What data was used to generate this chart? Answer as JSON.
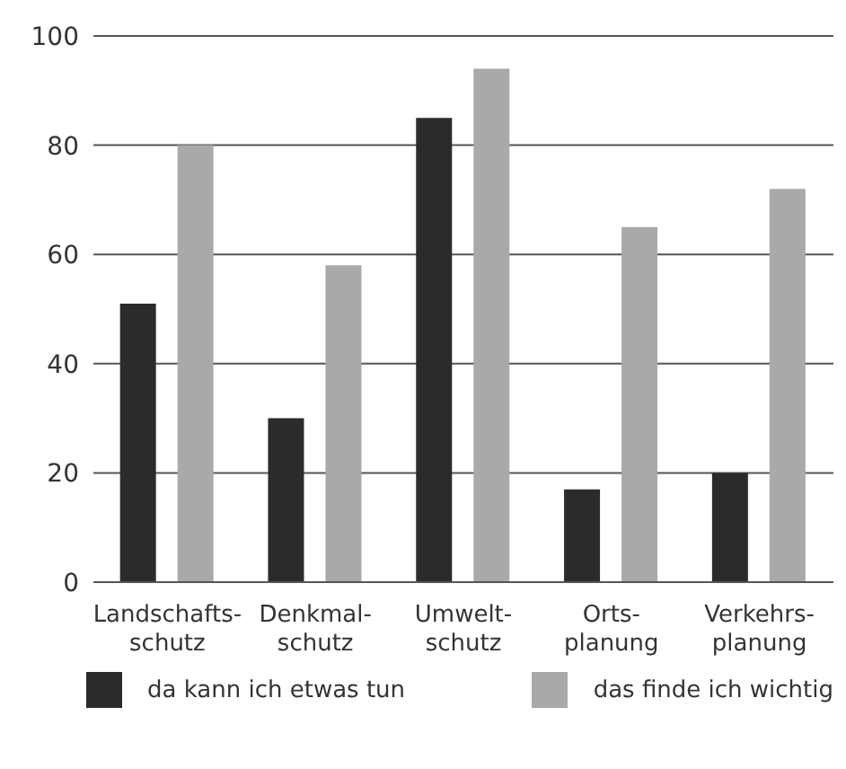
{
  "chart_data": {
    "type": "bar",
    "categories": [
      "Landschafts-\nschutz",
      "Denkmal-\nschutz",
      "Umwelt-\nschutz",
      "Orts-\nplanung",
      "Verkehrs-\nplanung"
    ],
    "series": [
      {
        "name": "da kann ich etwas tun",
        "color": "#2b2b2b",
        "values": [
          51,
          30,
          85,
          17,
          20
        ]
      },
      {
        "name": "das finde ich wichtig",
        "color": "#a9a9a9",
        "values": [
          80,
          58,
          94,
          65,
          72
        ]
      }
    ],
    "ylim": [
      0,
      100
    ],
    "yticks": [
      0,
      20,
      40,
      60,
      80,
      100
    ],
    "grid": "y",
    "legend": "bottom"
  }
}
